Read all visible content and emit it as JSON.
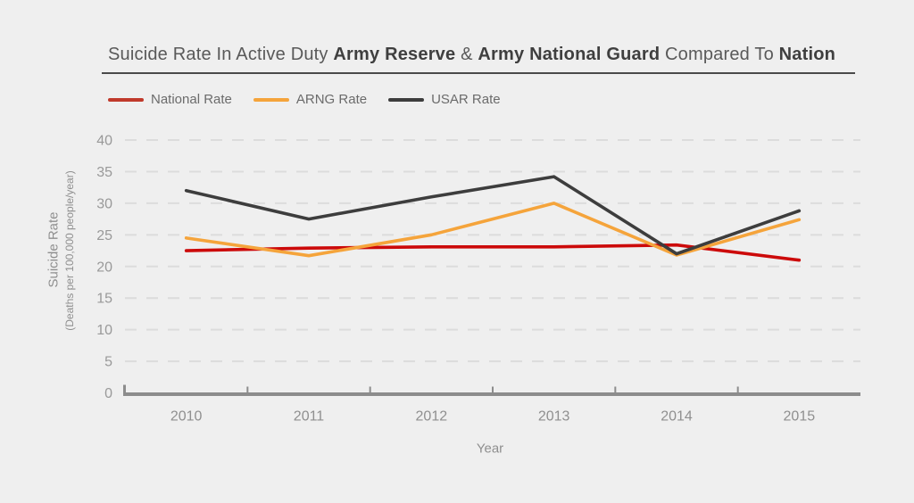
{
  "title": {
    "part1": "Suicide Rate In Active Duty ",
    "part2": "Army Reserve",
    "part3": " & ",
    "part4": "Army National Guard",
    "part5": " Compared To ",
    "part6": "Nation"
  },
  "legend": {
    "items": [
      {
        "label": "National Rate",
        "color": "#c0392b"
      },
      {
        "label": "ARNG Rate",
        "color": "#f5a43b"
      },
      {
        "label": "USAR Rate",
        "color": "#3d3d3d"
      }
    ]
  },
  "chart_data": {
    "type": "line",
    "x": [
      2010,
      2011,
      2012,
      2013,
      2014,
      2015
    ],
    "series": [
      {
        "name": "National Rate",
        "color": "#cc0a0a",
        "values": [
          22.5,
          22.9,
          23.1,
          23.1,
          23.4,
          21.0
        ]
      },
      {
        "name": "ARNG Rate",
        "color": "#f5a43b",
        "values": [
          24.5,
          21.7,
          25.0,
          30.0,
          21.8,
          27.4
        ]
      },
      {
        "name": "USAR Rate",
        "color": "#3d3d3d",
        "values": [
          32.0,
          27.5,
          31.0,
          34.2,
          22.0,
          28.8
        ]
      }
    ],
    "title": "Suicide Rate In Active Duty Army Reserve & Army National Guard Compared To Nation",
    "xlabel": "Year",
    "ylabel": "Suicide Rate",
    "ylabel_sub": "(Deaths per 100,000 people/year)",
    "ylim": [
      0,
      40
    ],
    "yticks": [
      0,
      5,
      10,
      15,
      20,
      25,
      30,
      35,
      40
    ],
    "grid": "dashed-horizontal",
    "legend_position": "top-left"
  },
  "colors": {
    "background": "#efefef",
    "grid": "#dcdcdc",
    "axis": "#8c8c8c",
    "tick_text": "#999999",
    "title_text": "#595959",
    "title_bold_text": "#3f3f3f",
    "legend_text": "#6b6b6b"
  }
}
